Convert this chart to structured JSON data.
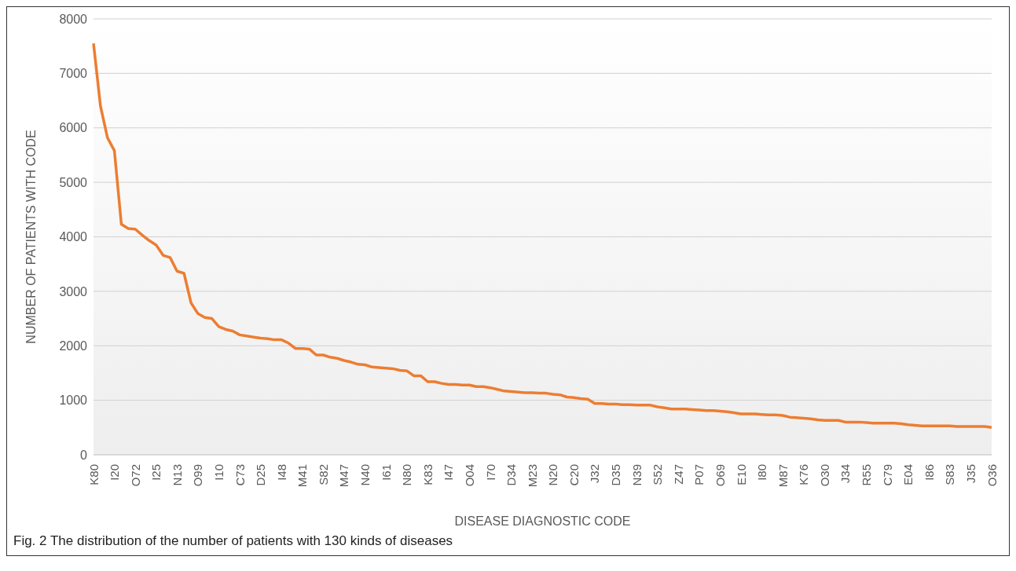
{
  "chart_data": {
    "type": "line",
    "xlabel": "DISEASE DIAGNOSTIC CODE",
    "ylabel": "NUMBER OF PATIENTS WITH CODE",
    "categories": [
      "K80",
      null,
      null,
      "I20",
      null,
      null,
      "O72",
      null,
      null,
      "I25",
      null,
      null,
      "N13",
      null,
      null,
      "O99",
      null,
      null,
      "I10",
      null,
      null,
      "C73",
      null,
      null,
      "D25",
      null,
      null,
      "I48",
      null,
      null,
      "M41",
      null,
      null,
      "S82",
      null,
      null,
      "M47",
      null,
      null,
      "N40",
      null,
      null,
      "I61",
      null,
      null,
      "N80",
      null,
      null,
      "K83",
      null,
      null,
      "I47",
      null,
      null,
      "O04",
      null,
      null,
      "I70",
      null,
      null,
      "D34",
      null,
      null,
      "M23",
      null,
      null,
      "N20",
      null,
      null,
      "C20",
      null,
      null,
      "J32",
      null,
      null,
      "D35",
      null,
      null,
      "N39",
      null,
      null,
      "S52",
      null,
      null,
      "Z47",
      null,
      null,
      "P07",
      null,
      null,
      "O69",
      null,
      null,
      "E10",
      null,
      null,
      "I80",
      null,
      null,
      "M87",
      null,
      null,
      "K76",
      null,
      null,
      "O30",
      null,
      null,
      "J34",
      null,
      null,
      "R55",
      null,
      null,
      "C79",
      null,
      null,
      "E04",
      null,
      null,
      "I86",
      null,
      null,
      "S83",
      null,
      null,
      "J35",
      null,
      null,
      "O36"
    ],
    "series": [
      {
        "color": "#ed7d31",
        "values": [
          7550,
          6400,
          5820,
          5580,
          4230,
          4150,
          4140,
          4030,
          3930,
          3850,
          3660,
          3620,
          3370,
          3330,
          2790,
          2590,
          2520,
          2500,
          2350,
          2300,
          2270,
          2200,
          2180,
          2160,
          2140,
          2130,
          2110,
          2110,
          2050,
          1950,
          1950,
          1940,
          1830,
          1830,
          1790,
          1770,
          1730,
          1700,
          1660,
          1650,
          1610,
          1600,
          1590,
          1580,
          1550,
          1540,
          1450,
          1450,
          1340,
          1340,
          1310,
          1290,
          1290,
          1280,
          1280,
          1250,
          1250,
          1230,
          1200,
          1170,
          1160,
          1150,
          1140,
          1140,
          1130,
          1130,
          1110,
          1100,
          1060,
          1050,
          1030,
          1020,
          940,
          940,
          930,
          930,
          920,
          920,
          910,
          910,
          910,
          880,
          860,
          840,
          840,
          840,
          830,
          820,
          810,
          810,
          800,
          790,
          770,
          750,
          750,
          750,
          740,
          730,
          730,
          720,
          690,
          680,
          670,
          660,
          640,
          630,
          630,
          630,
          600,
          600,
          600,
          590,
          580,
          580,
          580,
          580,
          570,
          550,
          540,
          530,
          530,
          530,
          530,
          530,
          520,
          520,
          520,
          520,
          520,
          500
        ]
      }
    ],
    "ylim": [
      0,
      8000
    ],
    "yticks": [
      0,
      1000,
      2000,
      3000,
      4000,
      5000,
      6000,
      7000,
      8000
    ],
    "grid": "y",
    "legend": false,
    "marker": "none",
    "line_style": "solid",
    "annotations": [
      "Fig. 2 The distribution of the number of patients with 130 kinds of diseases"
    ]
  }
}
